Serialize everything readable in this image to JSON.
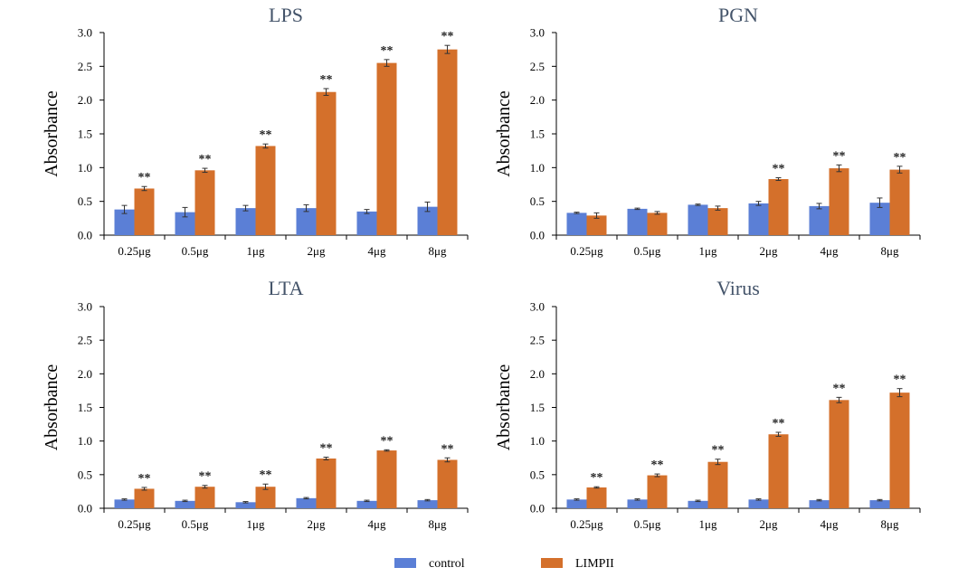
{
  "colors": {
    "control": "#5b7fd6",
    "limpii": "#d4702b",
    "axis": "#000000",
    "title": "#44546a"
  },
  "legend": {
    "control_label": "control",
    "limpii_label": "LIMPII"
  },
  "chart_data": [
    {
      "type": "bar",
      "title": "LPS",
      "ylabel": "Absorbance",
      "xlabel": "",
      "ylim": [
        0,
        3.0
      ],
      "yticks": [
        "0.0",
        "0.5",
        "1.0",
        "1.5",
        "2.0",
        "2.5",
        "3.0"
      ],
      "categories": [
        "0.25μg",
        "0.5μg",
        "1μg",
        "2μg",
        "4μg",
        "8μg"
      ],
      "series": [
        {
          "name": "control",
          "values": [
            0.38,
            0.34,
            0.4,
            0.4,
            0.35,
            0.42
          ],
          "errors": [
            0.06,
            0.07,
            0.04,
            0.05,
            0.03,
            0.07
          ]
        },
        {
          "name": "LIMPII",
          "values": [
            0.69,
            0.96,
            1.32,
            2.12,
            2.55,
            2.75
          ],
          "errors": [
            0.03,
            0.03,
            0.03,
            0.05,
            0.05,
            0.06
          ],
          "annotations": [
            "**",
            "**",
            "**",
            "**",
            "**",
            "**"
          ]
        }
      ]
    },
    {
      "type": "bar",
      "title": "PGN",
      "ylabel": "Absorbance",
      "xlabel": "",
      "ylim": [
        0,
        3.0
      ],
      "yticks": [
        "0.0",
        "0.5",
        "1.0",
        "1.5",
        "2.0",
        "2.5",
        "3.0"
      ],
      "categories": [
        "0.25μg",
        "0.5μg",
        "1μg",
        "2μg",
        "4μg",
        "8μg"
      ],
      "series": [
        {
          "name": "control",
          "values": [
            0.33,
            0.39,
            0.45,
            0.47,
            0.43,
            0.48
          ],
          "errors": [
            0.01,
            0.01,
            0.01,
            0.03,
            0.04,
            0.07
          ]
        },
        {
          "name": "LIMPII",
          "values": [
            0.29,
            0.33,
            0.4,
            0.83,
            0.99,
            0.97
          ],
          "errors": [
            0.04,
            0.02,
            0.03,
            0.02,
            0.05,
            0.05
          ],
          "annotations": [
            "",
            "",
            "",
            "**",
            "**",
            "**"
          ]
        }
      ]
    },
    {
      "type": "bar",
      "title": "LTA",
      "ylabel": "Absorbance",
      "xlabel": "",
      "ylim": [
        0,
        3.0
      ],
      "yticks": [
        "0.0",
        "0.5",
        "1.0",
        "1.5",
        "2.0",
        "2.5",
        "3.0"
      ],
      "categories": [
        "0.25μg",
        "0.5μg",
        "1μg",
        "2μg",
        "4μg",
        "8μg"
      ],
      "series": [
        {
          "name": "control",
          "values": [
            0.13,
            0.11,
            0.09,
            0.15,
            0.11,
            0.12
          ],
          "errors": [
            0.01,
            0.01,
            0.01,
            0.01,
            0.01,
            0.01
          ]
        },
        {
          "name": "LIMPII",
          "values": [
            0.29,
            0.32,
            0.32,
            0.74,
            0.86,
            0.72
          ],
          "errors": [
            0.02,
            0.02,
            0.04,
            0.02,
            0.01,
            0.03
          ],
          "annotations": [
            "**",
            "**",
            "**",
            "**",
            "**",
            "**"
          ]
        }
      ]
    },
    {
      "type": "bar",
      "title": "Virus",
      "ylabel": "Absorbance",
      "xlabel": "",
      "ylim": [
        0,
        3.0
      ],
      "yticks": [
        "0.0",
        "0.5",
        "1.0",
        "1.5",
        "2.0",
        "2.5",
        "3.0"
      ],
      "categories": [
        "0.25μg",
        "0.5μg",
        "1μg",
        "2μg",
        "4μg",
        "8μg"
      ],
      "series": [
        {
          "name": "control",
          "values": [
            0.13,
            0.13,
            0.11,
            0.13,
            0.12,
            0.12
          ],
          "errors": [
            0.01,
            0.01,
            0.01,
            0.01,
            0.01,
            0.01
          ]
        },
        {
          "name": "LIMPII",
          "values": [
            0.31,
            0.49,
            0.69,
            1.1,
            1.61,
            1.72
          ],
          "errors": [
            0.01,
            0.02,
            0.04,
            0.03,
            0.04,
            0.06
          ],
          "annotations": [
            "**",
            "**",
            "**",
            "**",
            "**",
            "**"
          ]
        }
      ]
    }
  ]
}
